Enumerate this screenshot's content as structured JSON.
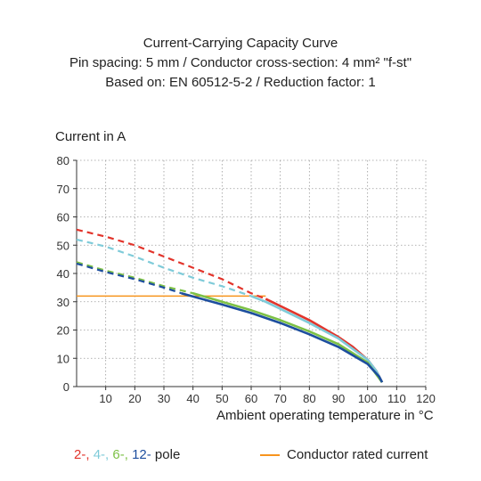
{
  "chart_data": {
    "type": "line",
    "title": "Current-Carrying Capacity Curve",
    "subtitle_lines": [
      "Pin spacing: 5 mm / Conductor cross-section: 4 mm² \"f-st\"",
      "Based on: EN 60512-5-2 / Reduction factor: 1"
    ],
    "xlabel": "Ambient operating temperature in °C",
    "ylabel": "Current in A",
    "xlim": [
      0,
      120
    ],
    "ylim": [
      0,
      80
    ],
    "xticks": [
      10,
      20,
      30,
      40,
      50,
      60,
      70,
      80,
      90,
      100,
      110,
      120
    ],
    "yticks": [
      0,
      10,
      20,
      30,
      40,
      50,
      60,
      70,
      80
    ],
    "grid": true,
    "series": [
      {
        "name": "2-",
        "color": "#e2342b",
        "dashed_points": [
          [
            0,
            55.5
          ],
          [
            10,
            53
          ],
          [
            20,
            50
          ],
          [
            30,
            46
          ],
          [
            40,
            42
          ],
          [
            50,
            38
          ],
          [
            60,
            33
          ],
          [
            65,
            31
          ]
        ],
        "solid_points": [
          [
            65,
            31
          ],
          [
            70,
            28.5
          ],
          [
            80,
            23.5
          ],
          [
            90,
            17.5
          ],
          [
            95,
            14
          ],
          [
            100,
            9.5
          ],
          [
            103,
            5.5
          ],
          [
            105,
            1.5
          ]
        ]
      },
      {
        "name": "4-",
        "color": "#7fcbd9",
        "dashed_points": [
          [
            0,
            52
          ],
          [
            10,
            49.5
          ],
          [
            20,
            46
          ],
          [
            30,
            42
          ],
          [
            40,
            38.5
          ],
          [
            50,
            35.5
          ],
          [
            60,
            32
          ]
        ],
        "solid_points": [
          [
            60,
            32
          ],
          [
            65,
            30
          ],
          [
            70,
            27.5
          ],
          [
            80,
            22.5
          ],
          [
            90,
            17
          ],
          [
            100,
            9.5
          ],
          [
            103,
            5.5
          ],
          [
            105,
            1.5
          ]
        ]
      },
      {
        "name": "6-",
        "color": "#7dc146",
        "dashed_points": [
          [
            0,
            44
          ],
          [
            10,
            41
          ],
          [
            20,
            38.5
          ],
          [
            30,
            35.5
          ],
          [
            40,
            33
          ]
        ],
        "solid_points": [
          [
            40,
            33
          ],
          [
            50,
            30
          ],
          [
            60,
            27
          ],
          [
            70,
            23.5
          ],
          [
            80,
            19.5
          ],
          [
            90,
            15
          ],
          [
            100,
            8.5
          ],
          [
            105,
            1.5
          ]
        ]
      },
      {
        "name": "12-",
        "color": "#1d4e9e",
        "dashed_points": [
          [
            0,
            43.5
          ],
          [
            10,
            40.5
          ],
          [
            20,
            38
          ],
          [
            30,
            35
          ],
          [
            36,
            33
          ]
        ],
        "solid_points": [
          [
            36,
            33
          ],
          [
            50,
            29
          ],
          [
            60,
            26
          ],
          [
            70,
            22.5
          ],
          [
            80,
            18.5
          ],
          [
            90,
            14
          ],
          [
            100,
            8
          ],
          [
            104,
            3.5
          ],
          [
            105,
            1.5
          ]
        ]
      }
    ],
    "reference_line": {
      "label": "Conductor rated current",
      "color": "#f7941d",
      "y": 32,
      "x_range": [
        0,
        65
      ]
    }
  },
  "legend": {
    "pole_prefixes": [
      "2-,",
      "4-,",
      "6-,",
      "12-"
    ],
    "pole_suffix": "pole",
    "rated_current": "Conductor rated current"
  }
}
